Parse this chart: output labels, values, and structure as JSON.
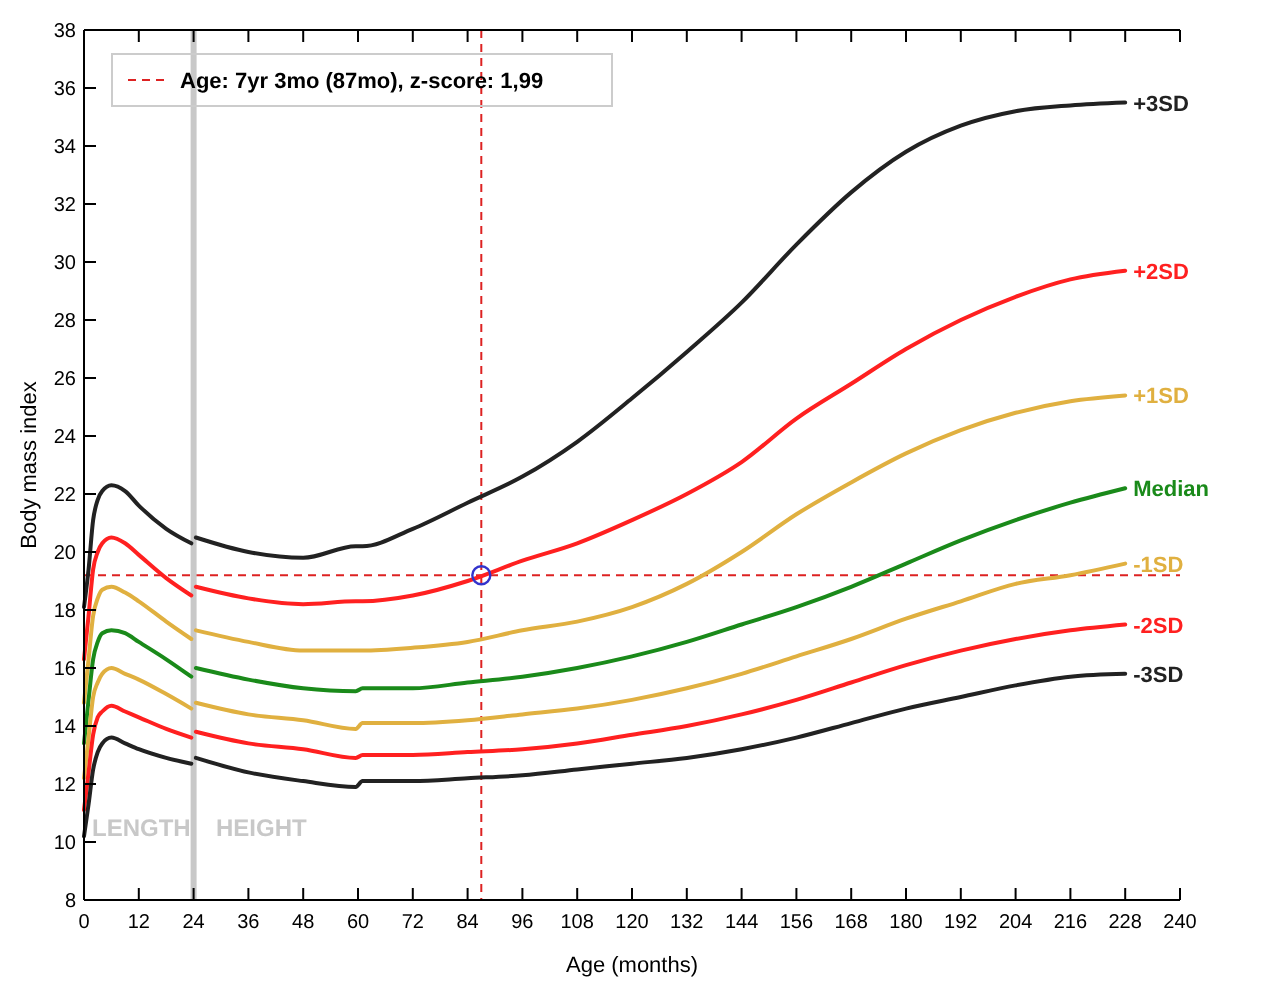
{
  "chart_data": {
    "type": "line",
    "xlabel": "Age (months)",
    "ylabel": "Body mass index",
    "x": [
      0,
      1,
      2,
      3,
      4,
      6,
      9,
      12,
      18,
      23.5,
      24,
      24.5,
      36,
      48,
      59.5,
      61,
      72,
      84,
      96,
      108,
      120,
      132,
      144,
      156,
      168,
      180,
      192,
      204,
      216,
      228
    ],
    "xlim": [
      0,
      240
    ],
    "xticks": [
      0,
      12,
      24,
      36,
      48,
      60,
      72,
      84,
      96,
      108,
      120,
      132,
      144,
      156,
      168,
      180,
      192,
      204,
      216,
      228,
      240
    ],
    "ylim": [
      8,
      38
    ],
    "yticks": [
      8,
      10,
      12,
      14,
      16,
      18,
      20,
      22,
      24,
      26,
      28,
      30,
      32,
      34,
      36,
      38
    ],
    "grid": false,
    "marker": "none",
    "line_style": "solid",
    "series": [
      {
        "name": "+3SD",
        "color": "#222222",
        "values": [
          18.1,
          19.4,
          21.1,
          21.8,
          22.1,
          22.3,
          22.1,
          21.6,
          20.8,
          20.3,
          null,
          20.5,
          20.0,
          19.8,
          20.2,
          20.2,
          20.8,
          21.7,
          22.6,
          23.8,
          25.3,
          26.9,
          28.6,
          30.6,
          32.4,
          33.8,
          34.7,
          35.2,
          35.4,
          35.5
        ]
      },
      {
        "name": "+2SD",
        "color": "#ff2020",
        "values": [
          16.3,
          17.8,
          19.4,
          20.0,
          20.3,
          20.5,
          20.3,
          19.9,
          19.1,
          18.5,
          null,
          18.8,
          18.4,
          18.2,
          18.3,
          18.3,
          18.5,
          19.0,
          19.7,
          20.3,
          21.1,
          22.0,
          23.1,
          24.6,
          25.8,
          27.0,
          28.0,
          28.8,
          29.4,
          29.7
        ]
      },
      {
        "name": "+1SD",
        "color": "#e0b040",
        "values": [
          14.8,
          16.3,
          17.8,
          18.4,
          18.7,
          18.8,
          18.6,
          18.3,
          17.6,
          17.0,
          null,
          17.3,
          16.9,
          16.6,
          16.6,
          16.6,
          16.7,
          16.9,
          17.3,
          17.6,
          18.1,
          18.9,
          20.0,
          21.3,
          22.4,
          23.4,
          24.2,
          24.8,
          25.2,
          25.4
        ]
      },
      {
        "name": "Median",
        "color": "#1a8a1a",
        "values": [
          13.4,
          14.9,
          16.3,
          16.9,
          17.2,
          17.3,
          17.2,
          16.9,
          16.3,
          15.7,
          null,
          16.0,
          15.6,
          15.3,
          15.2,
          15.3,
          15.3,
          15.5,
          15.7,
          16.0,
          16.4,
          16.9,
          17.5,
          18.1,
          18.8,
          19.6,
          20.4,
          21.1,
          21.7,
          22.2
        ]
      },
      {
        "name": "-1SD",
        "color": "#e0b040",
        "values": [
          12.2,
          13.6,
          15.0,
          15.5,
          15.8,
          16.0,
          15.8,
          15.6,
          15.1,
          14.6,
          null,
          14.8,
          14.4,
          14.2,
          13.9,
          14.1,
          14.1,
          14.2,
          14.4,
          14.6,
          14.9,
          15.3,
          15.8,
          16.4,
          17.0,
          17.7,
          18.3,
          18.9,
          19.2,
          19.6
        ]
      },
      {
        "name": "-2SD",
        "color": "#ff2020",
        "values": [
          11.1,
          12.4,
          13.7,
          14.3,
          14.5,
          14.7,
          14.5,
          14.3,
          13.9,
          13.6,
          null,
          13.8,
          13.4,
          13.2,
          12.9,
          13.0,
          13.0,
          13.1,
          13.2,
          13.4,
          13.7,
          14.0,
          14.4,
          14.9,
          15.5,
          16.1,
          16.6,
          17.0,
          17.3,
          17.5
        ]
      },
      {
        "name": "-3SD",
        "color": "#222222",
        "values": [
          10.2,
          11.3,
          12.5,
          13.1,
          13.4,
          13.6,
          13.4,
          13.2,
          12.9,
          12.7,
          null,
          12.9,
          12.4,
          12.1,
          11.9,
          12.1,
          12.1,
          12.2,
          12.3,
          12.5,
          12.7,
          12.9,
          13.2,
          13.6,
          14.1,
          14.6,
          15.0,
          15.4,
          15.7,
          15.8
        ]
      },
      {
        "type": "scatter",
        "x": [
          87
        ],
        "values": [
          19.2
        ],
        "color": "#3333cc",
        "marker": "circle"
      }
    ],
    "ref_lines": [
      {
        "axis": "x",
        "value": 87,
        "label": "Age: 7yr 3mo (87mo), z-score: 1,99",
        "color": "#dd2222",
        "line_style": "dashed"
      },
      {
        "axis": "y",
        "value": 19.2,
        "color": "#dd2222",
        "line_style": "dashed"
      },
      {
        "axis": "x",
        "value": 24,
        "color": "#c8c8c8",
        "line_style": "solid"
      }
    ],
    "annotations": [
      "LENGTH",
      "HEIGHT"
    ]
  }
}
